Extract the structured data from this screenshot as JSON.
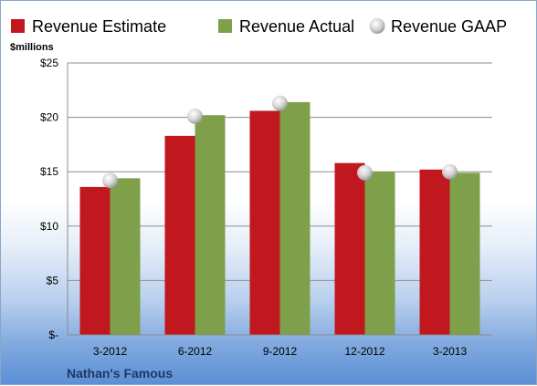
{
  "chart_data": {
    "type": "bar",
    "categories": [
      "3-2012",
      "6-2012",
      "9-2012",
      "12-2012",
      "3-2013"
    ],
    "series": [
      {
        "name": "Revenue Estimate",
        "kind": "bar",
        "color": "#c0181e",
        "values": [
          13.6,
          18.3,
          20.6,
          15.8,
          15.2
        ]
      },
      {
        "name": "Revenue Actual",
        "kind": "bar",
        "color": "#7ea04a",
        "values": [
          14.4,
          20.2,
          21.4,
          15.0,
          14.9
        ]
      },
      {
        "name": "Revenue GAAP",
        "kind": "marker",
        "color": "#c8c8c8",
        "values": [
          14.2,
          20.1,
          21.3,
          14.9,
          15.0
        ]
      }
    ],
    "ylabel": "$millions",
    "ylim": [
      0,
      25
    ],
    "yticks": [
      0,
      5,
      10,
      15,
      20,
      25
    ],
    "ytick_labels": [
      "$-",
      "$5",
      "$10",
      "$15",
      "$20",
      "$25"
    ],
    "grid": true,
    "legend": "top",
    "company": "Nathan's Famous"
  }
}
